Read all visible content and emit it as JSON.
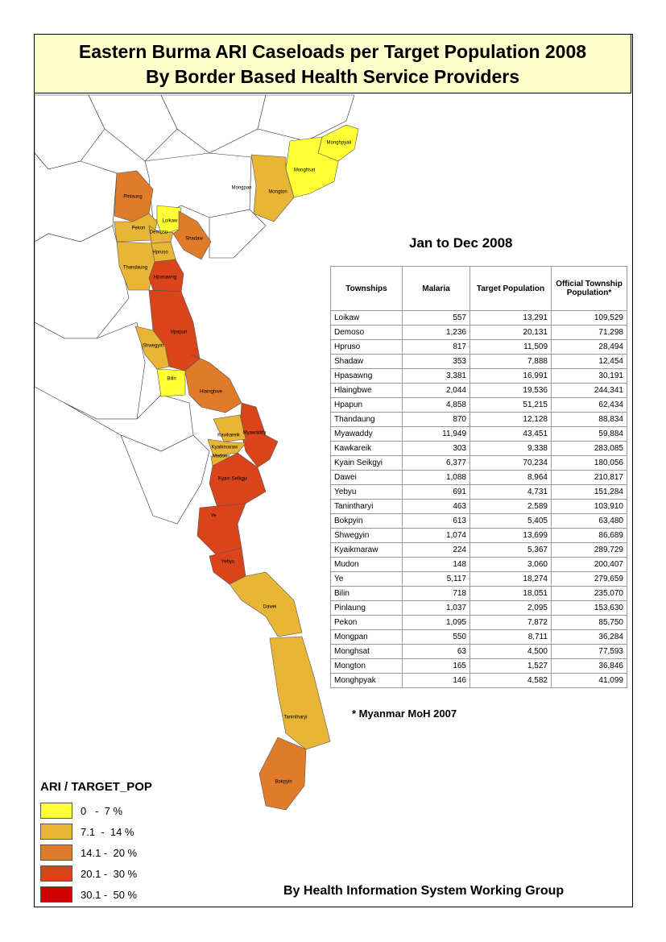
{
  "title": [
    "Eastern Burma ARI Caseloads per Target Population 2008",
    "By Border Based Health Service Providers"
  ],
  "period": "Jan to Dec 2008",
  "table": {
    "columns": [
      "Townships",
      "Malaria",
      "Target Population",
      "Official Township Population*"
    ],
    "rows": [
      [
        "Loikaw",
        "557",
        "13,291",
        "109,529"
      ],
      [
        "Demoso",
        "1,236",
        "20,131",
        "71,298"
      ],
      [
        "Hpruso",
        "817",
        "11,509",
        "28,494"
      ],
      [
        "Shadaw",
        "353",
        "7,888",
        "12,454"
      ],
      [
        "Hpasawng",
        "3,381",
        "16,991",
        "30,191"
      ],
      [
        "Hlaingbwe",
        "2,044",
        "19,536",
        "244,341"
      ],
      [
        "Hpapun",
        "4,858",
        "51,215",
        "62,434"
      ],
      [
        "Thandaung",
        "870",
        "12,128",
        "88,834"
      ],
      [
        "Myawaddy",
        "11,949",
        "43,451",
        "59,884"
      ],
      [
        "Kawkareik",
        "303",
        "9,338",
        "283,085"
      ],
      [
        "Kyain Seikgyi",
        "6,377",
        "70,234",
        "180,056"
      ],
      [
        "Dawei",
        "1,088",
        "8,964",
        "210,817"
      ],
      [
        "Yebyu",
        "691",
        "4,731",
        "151,284"
      ],
      [
        "Tanintharyi",
        "463",
        "2,589",
        "103,910"
      ],
      [
        "Bokpyin",
        "613",
        "5,405",
        "63,480"
      ],
      [
        "Shwegyin",
        "1,074",
        "13,699",
        "86,689"
      ],
      [
        "Kyaikmaraw",
        "224",
        "5,367",
        "289,729"
      ],
      [
        "Mudon",
        "148",
        "3,060",
        "200,407"
      ],
      [
        "Ye",
        "5,117",
        "18,274",
        "279,659"
      ],
      [
        "Bilin",
        "718",
        "18,051",
        "235,070"
      ],
      [
        "Pinlaung",
        "1,037",
        "2,095",
        "153,630"
      ],
      [
        "Pekon",
        "1,095",
        "7,872",
        "85,750"
      ],
      [
        "Mongpan",
        "550",
        "8,711",
        "36,284"
      ],
      [
        "Monghsat",
        "63",
        "4,500",
        "77,593"
      ],
      [
        "Mongton",
        "165",
        "1,527",
        "36,846"
      ],
      [
        "Monghpyak",
        "146",
        "4,582",
        "41,099"
      ]
    ]
  },
  "footnote": "* Myanmar MoH 2007",
  "legend": {
    "title": "ARI / TARGET_POP",
    "items": [
      {
        "label": "0   -  7 %",
        "color": "#ffff33"
      },
      {
        "label": "7.1  -  14 %",
        "color": "#e8b535"
      },
      {
        "label": "14.1 -  20 %",
        "color": "#e07b2a"
      },
      {
        "label": "20.1 -  30 %",
        "color": "#d9441a"
      },
      {
        "label": "30.1 -  50 %",
        "color": "#d40000"
      }
    ]
  },
  "credit": "By Health Information System Working Group",
  "map_labels": [
    "Monghpyak",
    "Monghsat",
    "Mongpan",
    "Mongton",
    "Pinlaung",
    "Loikaw",
    "Pekon",
    "Demoso",
    "Shadaw",
    "Hpruso",
    "Thandaung",
    "Hpasawng",
    "Hpapun",
    "Shwegyin",
    "Bilin",
    "Hlaingbwe",
    "Kawkareik",
    "Myawaddy",
    "Kyaikmaraw",
    "Mudon",
    "Kyain Seikgyi",
    "Ye",
    "Yebyu",
    "Dawei",
    "Tanintharyi",
    "Bokpyin"
  ]
}
